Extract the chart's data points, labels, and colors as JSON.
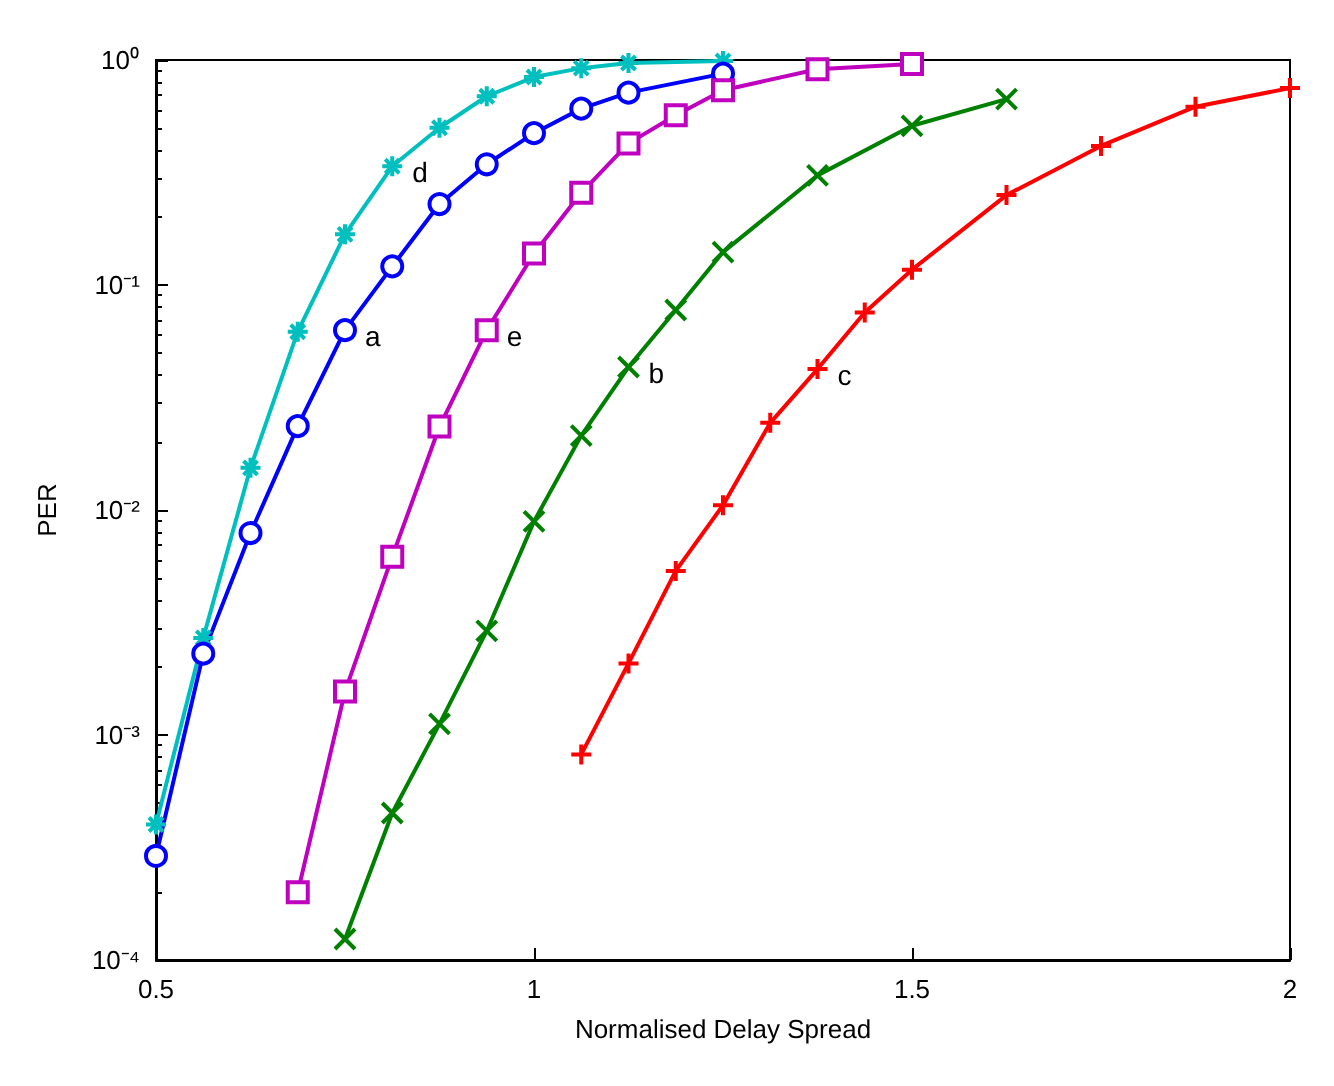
{
  "chart_data": {
    "type": "line",
    "xlabel": "Normalised Delay Spread",
    "ylabel": "PER",
    "log": "y",
    "grid": false,
    "line_style": "solid",
    "xlim": [
      0.5,
      2
    ],
    "xticks": [
      0.5,
      1,
      1.5,
      2
    ],
    "ylim": [
      0.0001,
      1
    ],
    "yticks": [
      {
        "value": 0.0001,
        "label": "10⁻⁴"
      },
      {
        "value": 0.001,
        "label": "10⁻³"
      },
      {
        "value": 0.01,
        "label": "10⁻²"
      },
      {
        "value": 0.1,
        "label": "10⁻¹"
      },
      {
        "value": 1,
        "label": "10⁰"
      }
    ],
    "series": [
      {
        "color": "#00bfbf",
        "marker": "cross",
        "x": [
          0.5,
          0.5625,
          0.625,
          0.6875,
          0.75,
          0.8125,
          0.875,
          0.9375,
          1.0,
          1.0625,
          1.125,
          1.25
        ],
        "values": [
          0.0004,
          0.0027,
          0.0154,
          0.062,
          0.168,
          0.337,
          0.5,
          0.69,
          0.84,
          0.92,
          0.97,
          0.99
        ]
      },
      {
        "color": "#0000ff",
        "marker": "circle",
        "x": [
          0.5,
          0.5625,
          0.625,
          0.6875,
          0.75,
          0.8125,
          0.875,
          0.9375,
          1.0,
          1.0625,
          1.125,
          1.25
        ],
        "values": [
          0.00029,
          0.0023,
          0.0079,
          0.0236,
          0.063,
          0.121,
          0.229,
          0.344,
          0.473,
          0.608,
          0.716,
          0.87
        ]
      },
      {
        "color": "#bf00bf",
        "marker": "square",
        "x": [
          0.6875,
          0.75,
          0.8125,
          0.875,
          0.9375,
          1.0,
          1.0625,
          1.125,
          1.1875,
          1.25,
          1.375,
          1.5
        ],
        "values": [
          0.0002,
          0.00156,
          0.0062,
          0.0235,
          0.063,
          0.138,
          0.257,
          0.426,
          0.568,
          0.734,
          0.91,
          0.96
        ]
      },
      {
        "color": "#008000",
        "marker": "x",
        "x": [
          0.75,
          0.8125,
          0.875,
          0.9375,
          1.0,
          1.0625,
          1.125,
          1.1875,
          1.25,
          1.375,
          1.5,
          1.625
        ],
        "values": [
          0.000124,
          0.00045,
          0.00112,
          0.0029,
          0.0089,
          0.0214,
          0.0432,
          0.0774,
          0.14,
          0.307,
          0.51,
          0.67
        ]
      },
      {
        "color": "#ff0000",
        "marker": "plus",
        "x": [
          1.0625,
          1.125,
          1.1875,
          1.25,
          1.3125,
          1.375,
          1.4375,
          1.5,
          1.625,
          1.75,
          1.875,
          2.0
        ],
        "values": [
          0.00082,
          0.00208,
          0.00536,
          0.0105,
          0.0244,
          0.0423,
          0.0755,
          0.117,
          0.251,
          0.415,
          0.62,
          0.75
        ]
      }
    ],
    "annotations": [
      {
        "text": "d",
        "x": 0.8125,
        "y": 0.337
      },
      {
        "text": "a",
        "x": 0.75,
        "y": 0.063
      },
      {
        "text": "e",
        "x": 0.9375,
        "y": 0.063
      },
      {
        "text": "b",
        "x": 1.125,
        "y": 0.0432
      },
      {
        "text": "c",
        "x": 1.375,
        "y": 0.0423
      }
    ]
  }
}
